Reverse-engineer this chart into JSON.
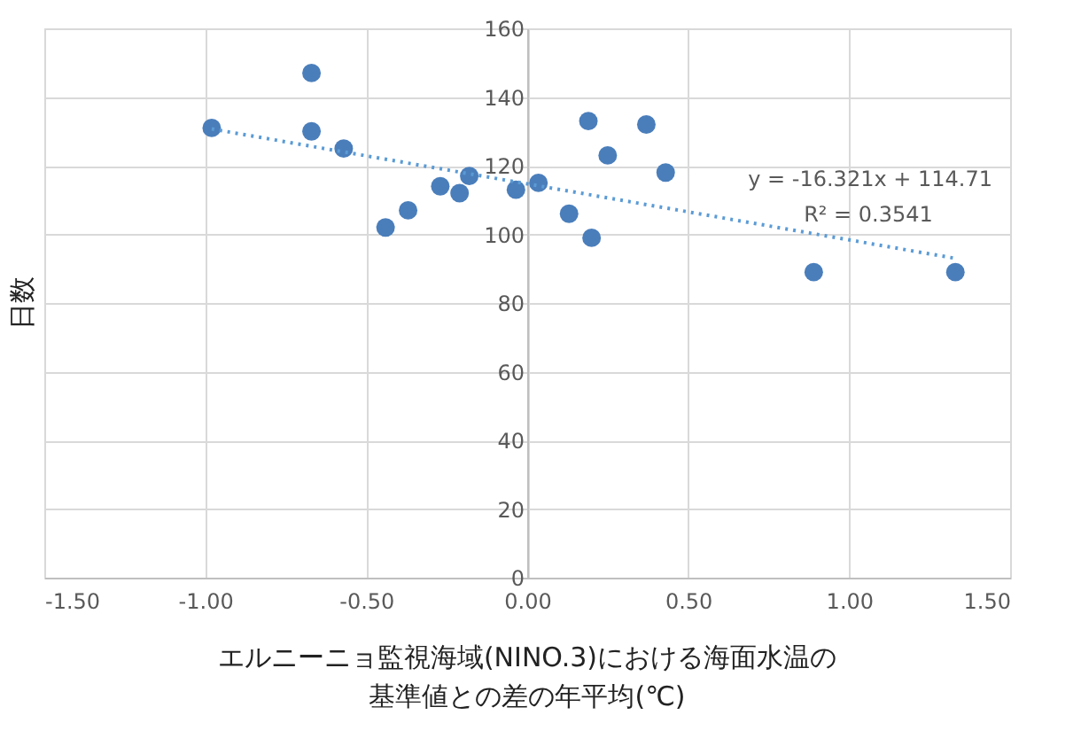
{
  "chart_data": {
    "type": "scatter",
    "xlabel": "エルニーニョ監視海域(NINO.3)における海面水温の基準値との差の年平均(℃)",
    "ylabel": "日数",
    "xlim": [
      -1.5,
      1.5
    ],
    "ylim": [
      0,
      160
    ],
    "xticks": [
      {
        "value": -1.5,
        "label": "-1.50"
      },
      {
        "value": -1.0,
        "label": "-1.00"
      },
      {
        "value": -0.5,
        "label": "-0.50"
      },
      {
        "value": 0,
        "label": "0.00"
      },
      {
        "value": 0.5,
        "label": "0.50"
      },
      {
        "value": 1.0,
        "label": "1.00"
      },
      {
        "value": 1.5,
        "label": "1.50"
      }
    ],
    "yticks": [
      0,
      20,
      40,
      60,
      80,
      100,
      120,
      140,
      160
    ],
    "grid": true,
    "series": [
      {
        "type": "scatter",
        "color": "#4a7ebb",
        "marker": "circle",
        "x": [
          -0.98,
          -0.67,
          -0.67,
          -0.57,
          -0.44,
          -0.37,
          -0.27,
          -0.21,
          -0.18,
          -0.035,
          0.035,
          0.13,
          0.19,
          0.2,
          0.25,
          0.37,
          0.43,
          0.89,
          1.33
        ],
        "values": [
          131,
          147,
          130,
          125,
          102,
          107,
          114,
          112,
          117,
          113,
          115,
          106,
          133,
          99,
          123,
          132,
          118,
          89,
          89
        ]
      },
      {
        "type": "line",
        "color": "#5b9bd5",
        "line_style": "dotted",
        "marker": "none",
        "x": [
          -0.98,
          1.33
        ],
        "values": [
          130.7,
          93.0
        ]
      }
    ],
    "annotations": [
      "y = -16.321x + 114.71",
      "R² = 0.3541"
    ]
  }
}
